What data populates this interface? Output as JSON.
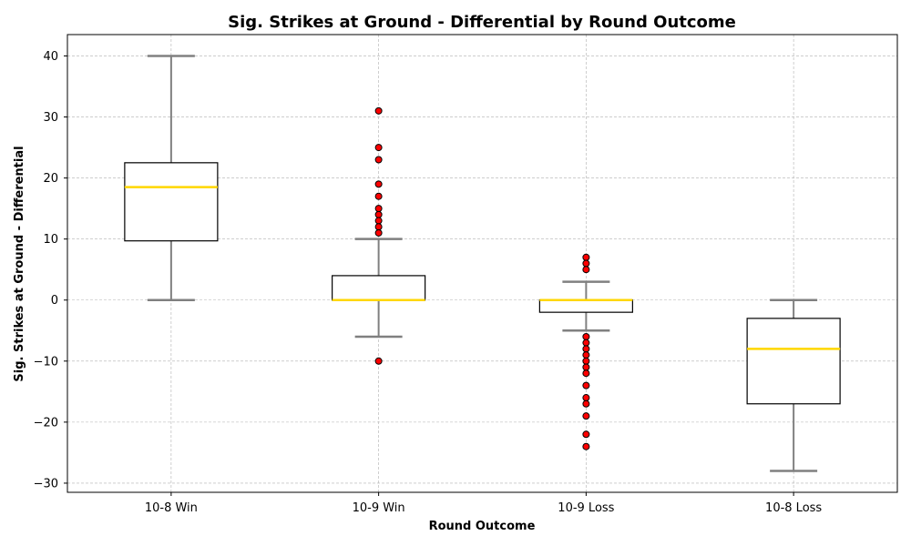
{
  "chart_data": {
    "type": "box",
    "title": "Sig. Strikes at Ground - Differential by Round Outcome",
    "xlabel": "Round Outcome",
    "ylabel": "Sig. Strikes at Ground - Differential",
    "categories": [
      "10-8 Win",
      "10-9 Win",
      "10-9 Loss",
      "10-8 Loss"
    ],
    "ylim": [
      -31.5,
      43.5
    ],
    "yticks": [
      -30,
      -20,
      -10,
      0,
      10,
      20,
      30,
      40
    ],
    "grid": true,
    "boxes": [
      {
        "category": "10-8 Win",
        "whisker_low": 0,
        "q1": 9.7,
        "median": 18.5,
        "q3": 22.5,
        "whisker_high": 40,
        "outliers": []
      },
      {
        "category": "10-9 Win",
        "whisker_low": -6,
        "q1": 0,
        "median": 0,
        "q3": 4,
        "whisker_high": 10,
        "outliers": [
          31,
          25,
          23,
          19,
          17,
          15,
          14,
          13,
          12,
          11,
          -10
        ]
      },
      {
        "category": "10-9 Loss",
        "whisker_low": -5,
        "q1": -2,
        "median": 0,
        "q3": 0,
        "whisker_high": 3,
        "outliers": [
          7,
          6,
          5,
          -6,
          -7,
          -8,
          -9,
          -10,
          -11,
          -12,
          -14,
          -16,
          -17,
          -19,
          -22,
          -24
        ]
      },
      {
        "category": "10-8 Loss",
        "whisker_low": -28,
        "q1": -17,
        "median": -8,
        "q3": -3,
        "whisker_high": 0,
        "outliers": []
      }
    ],
    "colors": {
      "box_edge": "#000000",
      "median": "#ffd700",
      "whisker": "#808080",
      "outlier_fill": "#ff0000",
      "outlier_edge": "#000000",
      "grid": "#b0b0b0"
    }
  }
}
